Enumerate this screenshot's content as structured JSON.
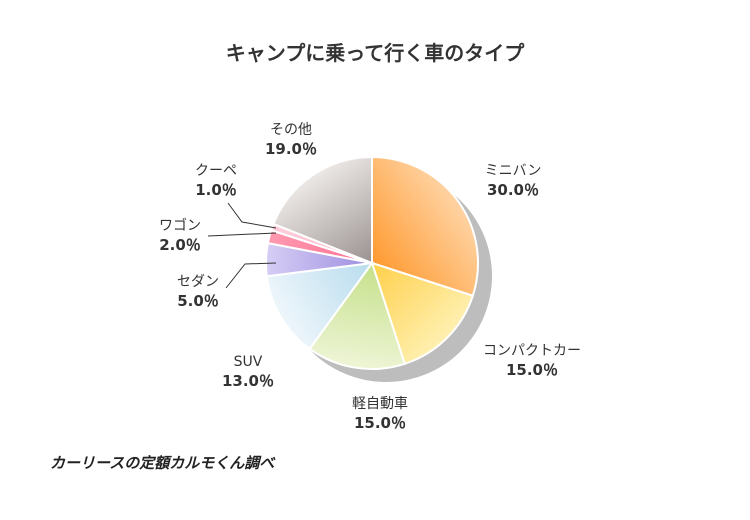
{
  "chart_data": {
    "type": "pie",
    "title": "キャンプに乗って行く車のタイプ",
    "start_angle_deg": 0,
    "direction": "clockwise",
    "slices": [
      {
        "label": "ミニバン",
        "value": 30.0,
        "value_label": "30.0％",
        "color_from": "#ffd3a3",
        "color_to": "#ff9a30"
      },
      {
        "label": "コンパクトカー",
        "value": 15.0,
        "value_label": "15.0％",
        "color_from": "#fff0b0",
        "color_to": "#ffcf4a"
      },
      {
        "label": "軽自動車",
        "value": 15.0,
        "value_label": "15.0％",
        "color_from": "#eef5d6",
        "color_to": "#c5e08a"
      },
      {
        "label": "SUV",
        "value": 13.0,
        "value_label": "13.0％",
        "color_from": "#eef6fb",
        "color_to": "#b8dcee"
      },
      {
        "label": "セダン",
        "value": 5.0,
        "value_label": "5.0％",
        "color_from": "#d6cef5",
        "color_to": "#9d8ee0"
      },
      {
        "label": "ワゴン",
        "value": 2.0,
        "value_label": "2.0％",
        "color_from": "#ff9ab0",
        "color_to": "#ff6f92"
      },
      {
        "label": "クーペ",
        "value": 1.0,
        "value_label": "1.0％",
        "color_from": "#ffd0dc",
        "color_to": "#ffb3c6"
      },
      {
        "label": "その他",
        "value": 19.0,
        "value_label": "19.0％",
        "color_from": "#ece8e6",
        "color_to": "#9a9290"
      }
    ],
    "shadow_color": "#bdbdbd",
    "leader_color": "#333333"
  },
  "source_text": "カーリースの定額カルモくん調べ"
}
